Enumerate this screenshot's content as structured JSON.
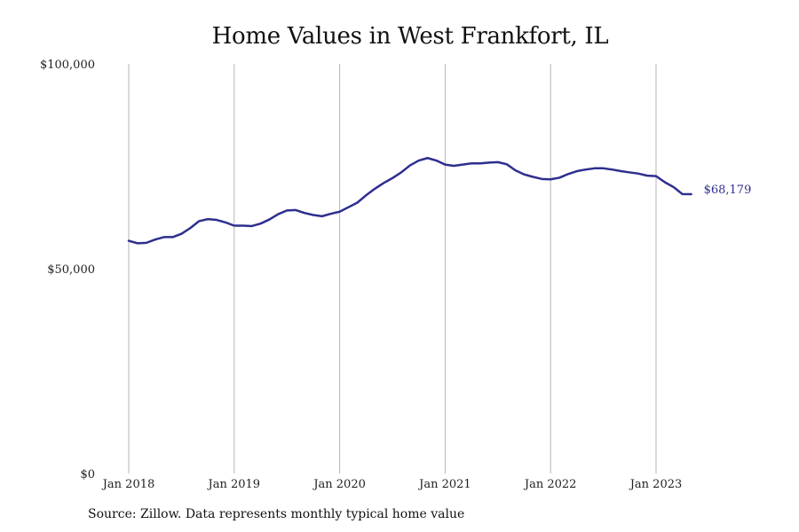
{
  "chart_data": {
    "type": "line",
    "title": "Home Values in West Frankfort, IL",
    "source": "Source: Zillow. Data represents monthly typical home value",
    "xlabel": "",
    "ylabel": "",
    "ylim": [
      0,
      100000
    ],
    "y_ticks": [
      {
        "value": 0,
        "label": "$0"
      },
      {
        "value": 50000,
        "label": "$50,000"
      },
      {
        "value": 100000,
        "label": "$100,000"
      }
    ],
    "x_ticks": [
      {
        "value": "2018-01",
        "label": "Jan 2018"
      },
      {
        "value": "2019-01",
        "label": "Jan 2019"
      },
      {
        "value": "2020-01",
        "label": "Jan 2020"
      },
      {
        "value": "2021-01",
        "label": "Jan 2021"
      },
      {
        "value": "2022-01",
        "label": "Jan 2022"
      },
      {
        "value": "2023-01",
        "label": "Jan 2023"
      }
    ],
    "grid": "vertical",
    "line_color": "#2e2e8f",
    "end_label": "$68,179",
    "series": [
      {
        "x": [
          "2018-01",
          "2018-02",
          "2018-03",
          "2018-04",
          "2018-05",
          "2018-06",
          "2018-07",
          "2018-08",
          "2018-09",
          "2018-10",
          "2018-11",
          "2018-12",
          "2019-01",
          "2019-02",
          "2019-03",
          "2019-04",
          "2019-05",
          "2019-06",
          "2019-07",
          "2019-08",
          "2019-09",
          "2019-10",
          "2019-11",
          "2019-12",
          "2020-01",
          "2020-02",
          "2020-03",
          "2020-04",
          "2020-05",
          "2020-06",
          "2020-07",
          "2020-08",
          "2020-09",
          "2020-10",
          "2020-11",
          "2020-12",
          "2021-01",
          "2021-02",
          "2021-03",
          "2021-04",
          "2021-05",
          "2021-06",
          "2021-07",
          "2021-08",
          "2021-09",
          "2021-10",
          "2021-11",
          "2021-12",
          "2022-01",
          "2022-02",
          "2022-03",
          "2022-04",
          "2022-05",
          "2022-06",
          "2022-07",
          "2022-08",
          "2022-09",
          "2022-10",
          "2022-11",
          "2022-12",
          "2023-01",
          "2023-02",
          "2023-03",
          "2023-04",
          "2023-05"
        ],
        "values": [
          56800,
          56200,
          56300,
          57100,
          57700,
          57700,
          58500,
          59900,
          61600,
          62100,
          61900,
          61300,
          60500,
          60500,
          60400,
          61000,
          62000,
          63300,
          64200,
          64300,
          63600,
          63100,
          62800,
          63400,
          63900,
          65000,
          66100,
          67900,
          69500,
          70900,
          72100,
          73500,
          75200,
          76400,
          77000,
          76400,
          75400,
          75100,
          75400,
          75700,
          75700,
          75900,
          76000,
          75500,
          74000,
          73000,
          72400,
          71900,
          71800,
          72200,
          73100,
          73800,
          74200,
          74500,
          74500,
          74200,
          73800,
          73500,
          73200,
          72700,
          72600,
          71100,
          69900,
          68200,
          68179
        ]
      }
    ]
  }
}
